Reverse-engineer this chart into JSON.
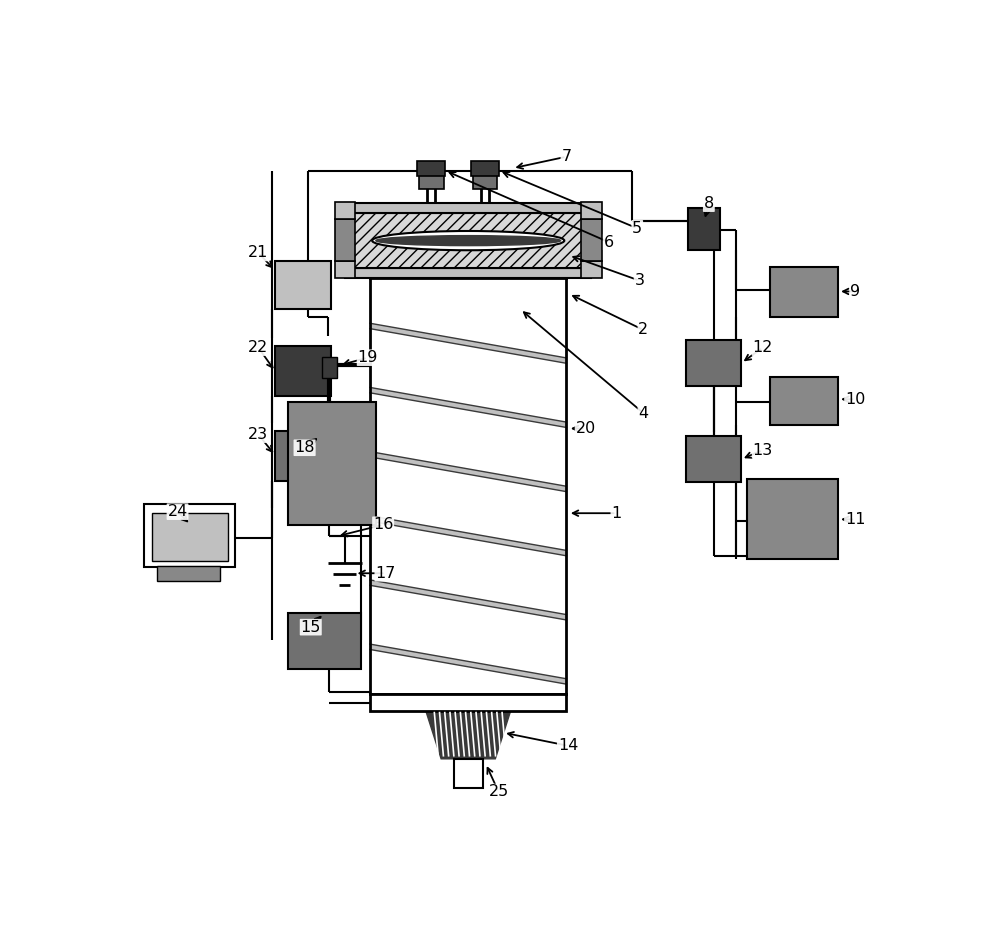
{
  "bg": "#ffffff",
  "lc": "#000000",
  "dg": "#3a3a3a",
  "mg": "#888888",
  "lg": "#c0c0c0",
  "hg": "#d8d8d8",
  "mg2": "#707070",
  "figsize": [
    10.0,
    9.4
  ],
  "dpi": 100
}
